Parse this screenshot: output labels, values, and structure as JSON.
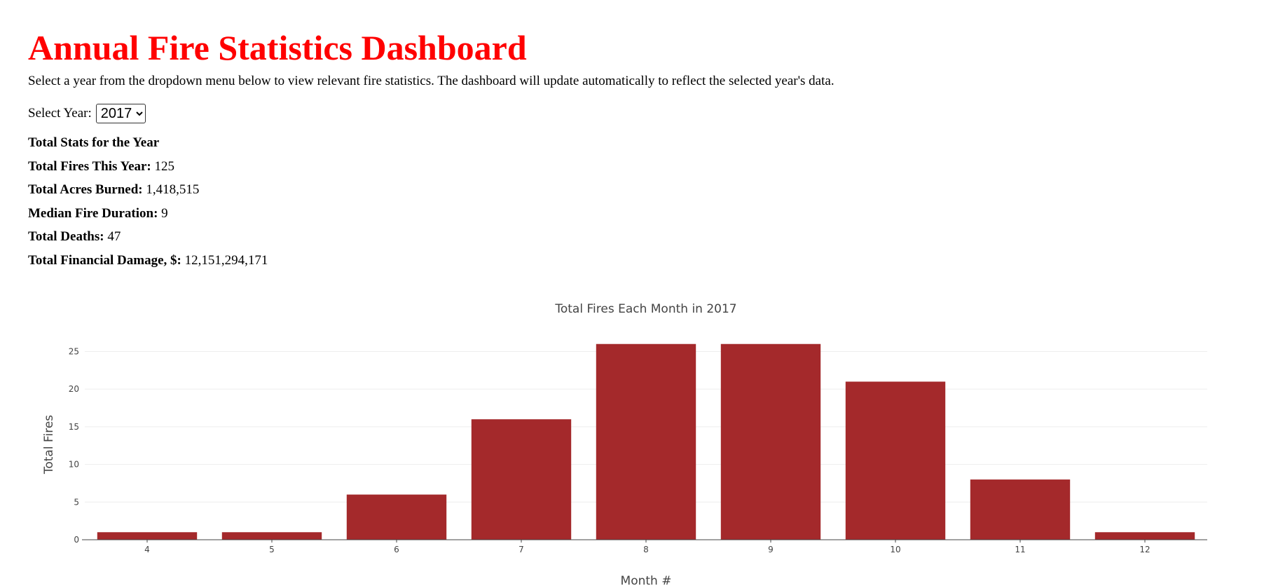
{
  "header": {
    "title": "Annual Fire Statistics Dashboard",
    "intro": "Select a year from the dropdown menu below to view relevant fire statistics. The dashboard will update automatically to reflect the selected year's data."
  },
  "year_select": {
    "label": "Select Year:",
    "selected": "2017"
  },
  "stats": {
    "heading": "Total Stats for the Year",
    "items": [
      {
        "label": "Total Fires This Year:",
        "value": "125"
      },
      {
        "label": "Total Acres Burned:",
        "value": "1,418,515"
      },
      {
        "label": "Median Fire Duration:",
        "value": "9"
      },
      {
        "label": "Total Deaths:",
        "value": "47"
      },
      {
        "label": "Total Financial Damage, $:",
        "value": "12,151,294,171"
      }
    ]
  },
  "colors": {
    "title": "#ff0000",
    "bar": "#a4292b",
    "grid": "#eeeeee",
    "axis": "#444444"
  },
  "chart_data": {
    "type": "bar",
    "title": "Total Fires Each Month in 2017",
    "xlabel": "Month #",
    "ylabel": "Total Fires",
    "categories": [
      "4",
      "5",
      "6",
      "7",
      "8",
      "9",
      "10",
      "11",
      "12"
    ],
    "values": [
      1,
      1,
      6,
      16,
      26,
      26,
      21,
      8,
      1
    ],
    "ylim": [
      0,
      27
    ],
    "yticks": [
      0,
      5,
      10,
      15,
      20,
      25
    ],
    "grid": true,
    "legend": "none"
  }
}
